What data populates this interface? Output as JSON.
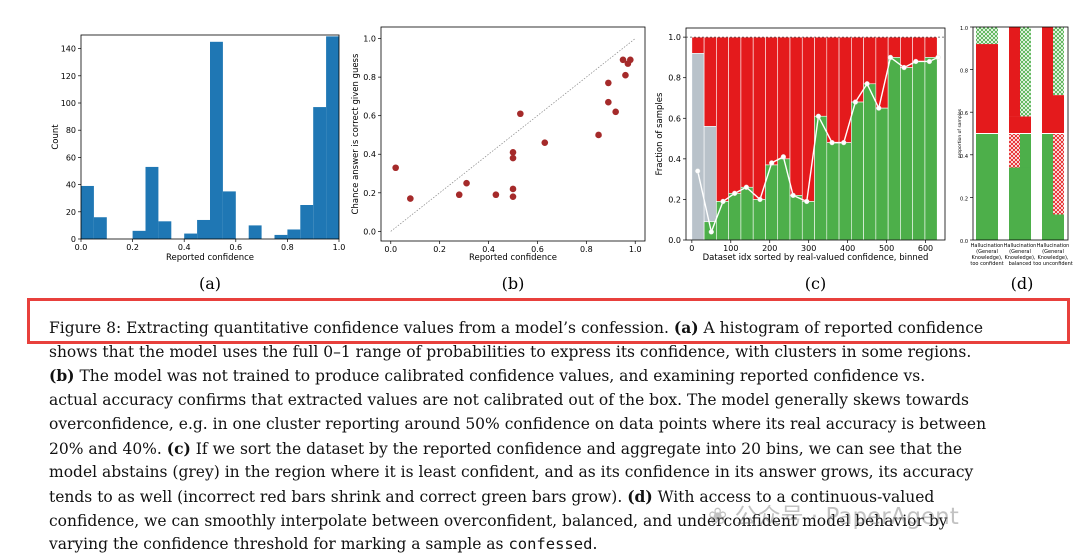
{
  "colors": {
    "hist": "#1f77b4",
    "dot": "#a52a2a",
    "green": "#4daf4a",
    "red": "#e41a1c",
    "grey": "#b9c2ca",
    "highlight": "#e8403c"
  },
  "chart_data": [
    {
      "id": "a",
      "type": "bar",
      "panel_label": "(a)",
      "xlabel": "Reported confidence",
      "ylabel": "Count",
      "xlim": [
        0,
        1
      ],
      "ylim": [
        0,
        150
      ],
      "xticks": [
        "0.0",
        "0.2",
        "0.4",
        "0.6",
        "0.8",
        "1.0"
      ],
      "yticks": [
        "0",
        "20",
        "40",
        "60",
        "80",
        "100",
        "120",
        "140"
      ],
      "bins": [
        [
          0.0,
          0.05,
          39
        ],
        [
          0.05,
          0.1,
          16
        ],
        [
          0.2,
          0.25,
          6
        ],
        [
          0.25,
          0.3,
          53
        ],
        [
          0.3,
          0.35,
          13
        ],
        [
          0.4,
          0.45,
          4
        ],
        [
          0.45,
          0.5,
          14
        ],
        [
          0.5,
          0.55,
          145
        ],
        [
          0.55,
          0.6,
          35
        ],
        [
          0.65,
          0.7,
          10
        ],
        [
          0.75,
          0.8,
          3
        ],
        [
          0.8,
          0.85,
          7
        ],
        [
          0.85,
          0.9,
          25
        ],
        [
          0.9,
          0.95,
          97
        ],
        [
          0.95,
          1.0,
          149
        ]
      ]
    },
    {
      "id": "b",
      "type": "scatter",
      "panel_label": "(b)",
      "xlabel": "Reported confidence",
      "ylabel": "Chance answer is correct given guess",
      "xlim": [
        0,
        1
      ],
      "ylim": [
        0,
        1
      ],
      "xticks": [
        "0.0",
        "0.2",
        "0.4",
        "0.6",
        "0.8",
        "1.0"
      ],
      "yticks": [
        "0.0",
        "0.2",
        "0.4",
        "0.6",
        "0.8",
        "1.0"
      ],
      "diagonal": true,
      "points": [
        [
          0.02,
          0.33
        ],
        [
          0.08,
          0.17
        ],
        [
          0.28,
          0.19
        ],
        [
          0.31,
          0.25
        ],
        [
          0.43,
          0.19
        ],
        [
          0.5,
          0.41
        ],
        [
          0.5,
          0.38
        ],
        [
          0.5,
          0.22
        ],
        [
          0.5,
          0.18
        ],
        [
          0.53,
          0.61
        ],
        [
          0.63,
          0.46
        ],
        [
          0.85,
          0.5
        ],
        [
          0.89,
          0.67
        ],
        [
          0.89,
          0.77
        ],
        [
          0.92,
          0.62
        ],
        [
          0.95,
          0.89
        ],
        [
          0.96,
          0.81
        ],
        [
          0.97,
          0.87
        ],
        [
          0.98,
          0.89
        ]
      ]
    },
    {
      "id": "c",
      "type": "bar",
      "panel_label": "(c)",
      "xlabel": "Dataset idx sorted by real-valued confidence, binned",
      "ylabel": "Fraction of samples",
      "xlim": [
        -15,
        650
      ],
      "ylim": [
        0,
        1
      ],
      "xticks": [
        "0",
        "100",
        "200",
        "300",
        "400",
        "500",
        "600"
      ],
      "xtick_values": [
        0,
        100,
        200,
        300,
        400,
        500,
        600
      ],
      "yticks": [
        "0.0",
        "0.2",
        "0.4",
        "0.6",
        "0.8",
        "1.0"
      ],
      "bin_width": 31.5,
      "bins": [
        {
          "x": 0,
          "correct": 0.0,
          "abstain": 0.92
        },
        {
          "x": 31.5,
          "correct": 0.09,
          "abstain": 0.47
        },
        {
          "x": 63,
          "correct": 0.19,
          "abstain": 0
        },
        {
          "x": 94.5,
          "correct": 0.23,
          "abstain": 0
        },
        {
          "x": 126,
          "correct": 0.26,
          "abstain": 0
        },
        {
          "x": 157.5,
          "correct": 0.2,
          "abstain": 0
        },
        {
          "x": 189,
          "correct": 0.37,
          "abstain": 0
        },
        {
          "x": 220.5,
          "correct": 0.4,
          "abstain": 0
        },
        {
          "x": 252,
          "correct": 0.22,
          "abstain": 0
        },
        {
          "x": 283.5,
          "correct": 0.19,
          "abstain": 0
        },
        {
          "x": 315,
          "correct": 0.61,
          "abstain": 0
        },
        {
          "x": 346.5,
          "correct": 0.48,
          "abstain": 0
        },
        {
          "x": 378,
          "correct": 0.48,
          "abstain": 0
        },
        {
          "x": 409.5,
          "correct": 0.68,
          "abstain": 0
        },
        {
          "x": 441,
          "correct": 0.77,
          "abstain": 0
        },
        {
          "x": 472.5,
          "correct": 0.65,
          "abstain": 0
        },
        {
          "x": 504,
          "correct": 0.9,
          "abstain": 0
        },
        {
          "x": 535.5,
          "correct": 0.85,
          "abstain": 0
        },
        {
          "x": 567,
          "correct": 0.88,
          "abstain": 0
        },
        {
          "x": 598.5,
          "correct": 0.9,
          "abstain": 0
        }
      ],
      "line_x": [
        15,
        50,
        80,
        110,
        140,
        175,
        205,
        235,
        260,
        295,
        325,
        360,
        390,
        420,
        450,
        480,
        510,
        545,
        575,
        610,
        632
      ],
      "line_y": [
        0.34,
        0.04,
        0.19,
        0.23,
        0.26,
        0.2,
        0.38,
        0.41,
        0.22,
        0.19,
        0.61,
        0.48,
        0.48,
        0.68,
        0.77,
        0.65,
        0.9,
        0.85,
        0.88,
        0.88,
        0.9
      ]
    },
    {
      "id": "d",
      "type": "bar",
      "panel_label": "(d)",
      "ylabel": "proportion of samples",
      "ylim": [
        0,
        1
      ],
      "yticks": [
        "0.0",
        "0.2",
        "0.4",
        "0.6",
        "0.8",
        "1.0"
      ],
      "categories": [
        "Hallucination (General Knowledge), too confident",
        "Hallucination (General Knowledge), balanced",
        "Hallucination (General Knowledge), too unconfident"
      ],
      "category_lines": [
        [
          "Hallucination",
          "(General",
          "Knowledge),",
          "too confident"
        ],
        [
          "Hallucination",
          "(General",
          "Knowledge),",
          "balanced"
        ],
        [
          "Hallucination",
          "(General",
          "Knowledge),",
          "too unconfident"
        ]
      ],
      "groups": [
        {
          "green": 0.5,
          "red": 0.5,
          "green_h": 0.0,
          "red_h": 0.08
        },
        {
          "green": 0.5,
          "red": 0.5,
          "green_h": 0.0,
          "red_h": 0.0
        },
        {
          "green": 0.5,
          "red": 0.5,
          "green_h": 0.3,
          "red_h": 0.0
        }
      ]
    }
  ],
  "caption": {
    "lines": [
      [
        {
          "t": "Figure 8:  Extracting quantitative confidence values from a model’s confession.  ",
          "b": false
        },
        {
          "t": "(a)",
          "b": true
        },
        {
          "t": " A histogram of reported confidence",
          "b": false
        }
      ],
      [
        {
          "t": "shows that the model uses the full 0–1 range of probabilities to express its confidence, with clusters in some regions.",
          "b": false
        }
      ],
      [
        {
          "t": "(b)",
          "b": true
        },
        {
          "t": " The model was not trained to produce calibrated confidence values, and examining reported confidence vs.",
          "b": false
        }
      ],
      [
        {
          "t": "actual accuracy confirms that extracted values are not calibrated out of the box.  The model generally skews towards",
          "b": false
        }
      ],
      [
        {
          "t": "overconfidence, e.g. in one cluster reporting around 50% confidence on data points where its real accuracy is between",
          "b": false
        }
      ],
      [
        {
          "t": "20% and 40%.  ",
          "b": false
        },
        {
          "t": "(c)",
          "b": true
        },
        {
          "t": " If we sort the dataset by the reported confidence and aggregate into 20 bins, we can see that the",
          "b": false
        }
      ],
      [
        {
          "t": "model abstains (grey) in the region where it is least confident, and as its confidence in its answer grows, its accuracy",
          "b": false
        }
      ],
      [
        {
          "t": "tends to as well (incorrect red bars shrink and correct green bars grow).  ",
          "b": false
        },
        {
          "t": "(d)",
          "b": true
        },
        {
          "t": " With access to a continuous-valued",
          "b": false
        }
      ],
      [
        {
          "t": "confidence, we can smoothly interpolate between overconfident, balanced, and underconfident model behavior by",
          "b": false
        }
      ],
      [
        {
          "t": "varying the confidence threshold for marking a sample as ",
          "b": false
        },
        {
          "t": "confessed",
          "b": false,
          "mono": true
        },
        {
          "t": ".",
          "b": false
        }
      ]
    ]
  },
  "watermark": "❀ 公众号 · PaperAgent"
}
